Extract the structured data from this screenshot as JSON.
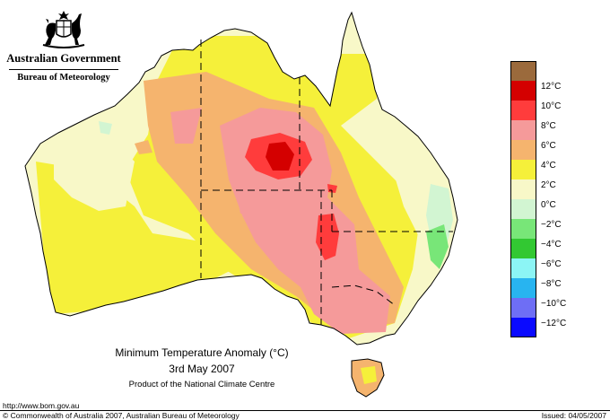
{
  "header": {
    "government": "Australian Government",
    "bureau": "Bureau of Meteorology",
    "crest_icon": "commonwealth-coat-of-arms-icon"
  },
  "caption": {
    "title": "Minimum Temperature Anomaly (°C)",
    "date": "3rd May 2007",
    "product": "Product of the National Climate Centre"
  },
  "legend": {
    "items": [
      {
        "color": "#9b6a3c",
        "label": ""
      },
      {
        "color": "#d40000",
        "label": "12°C"
      },
      {
        "color": "#ff3c3c",
        "label": "10°C"
      },
      {
        "color": "#f59a9a",
        "label": "8°C"
      },
      {
        "color": "#f5b46e",
        "label": "6°C"
      },
      {
        "color": "#f5f03a",
        "label": "4°C"
      },
      {
        "color": "#f8f8c8",
        "label": "2°C"
      },
      {
        "color": "#d2f5d2",
        "label": "0°C"
      },
      {
        "color": "#78e678",
        "label": "−2°C"
      },
      {
        "color": "#32c832",
        "label": "−4°C"
      },
      {
        "color": "#8cf5f5",
        "label": "−6°C"
      },
      {
        "color": "#28b4f0",
        "label": "−8°C"
      },
      {
        "color": "#6e6ef5",
        "label": "−10°C"
      },
      {
        "color": "#0a0aff",
        "label": "−12°C"
      }
    ]
  },
  "map_colors": {
    "ocean": "#ffffff",
    "border": "#000000",
    "state_border": "#000000"
  },
  "footer": {
    "url": "http://www.bom.gov.au",
    "copyright": "© Commonwealth of Australia 2007, Australian Bureau of Meteorology",
    "issued": "Issued: 04/05/2007"
  }
}
